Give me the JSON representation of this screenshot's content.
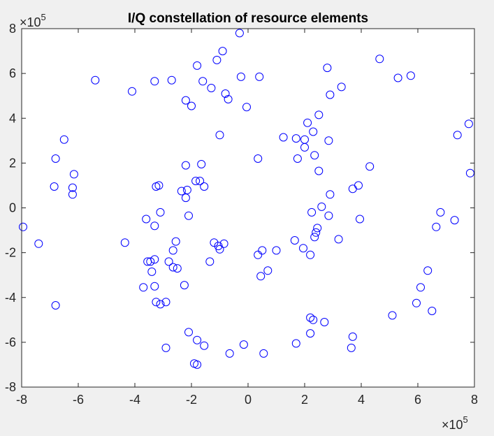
{
  "chart_data": {
    "type": "scatter",
    "title": "I/Q constellation of resource elements",
    "xlabel": "",
    "ylabel": "",
    "xlim": [
      -8,
      8
    ],
    "ylim": [
      -8,
      8
    ],
    "x_ticks": [
      "-8",
      "-6",
      "-4",
      "-2",
      "0",
      "2",
      "4",
      "6",
      "8"
    ],
    "y_ticks": [
      "8",
      "6",
      "4",
      "2",
      "0",
      "-2",
      "-4",
      "-6",
      "-8"
    ],
    "x_exponent": {
      "base": "×10",
      "power": "5"
    },
    "y_exponent": {
      "base": "×10",
      "power": "5"
    },
    "grid": false,
    "marker": "o",
    "marker_color": "#0000ff",
    "points": [
      [
        -0.3,
        7.8
      ],
      [
        -0.9,
        7.0
      ],
      [
        -1.1,
        6.6
      ],
      [
        -1.8,
        6.35
      ],
      [
        -2.7,
        5.7
      ],
      [
        -3.3,
        5.65
      ],
      [
        -5.4,
        5.7
      ],
      [
        -1.6,
        5.65
      ],
      [
        -1.3,
        5.35
      ],
      [
        -0.8,
        5.1
      ],
      [
        -0.7,
        4.85
      ],
      [
        -2.2,
        4.8
      ],
      [
        -2.0,
        4.55
      ],
      [
        -4.1,
        5.2
      ],
      [
        -0.25,
        5.85
      ],
      [
        0.4,
        5.85
      ],
      [
        -0.05,
        4.5
      ],
      [
        -1.0,
        3.25
      ],
      [
        2.8,
        6.25
      ],
      [
        2.9,
        5.05
      ],
      [
        3.3,
        5.4
      ],
      [
        4.65,
        6.65
      ],
      [
        5.3,
        5.8
      ],
      [
        5.75,
        5.9
      ],
      [
        2.5,
        4.15
      ],
      [
        2.1,
        3.8
      ],
      [
        2.3,
        3.4
      ],
      [
        1.25,
        3.15
      ],
      [
        1.7,
        3.1
      ],
      [
        2.0,
        3.05
      ],
      [
        2.85,
        3.0
      ],
      [
        2.0,
        2.7
      ],
      [
        0.35,
        2.2
      ],
      [
        1.75,
        2.2
      ],
      [
        2.35,
        2.35
      ],
      [
        2.5,
        1.65
      ],
      [
        4.3,
        1.85
      ],
      [
        -6.5,
        3.05
      ],
      [
        -6.8,
        2.2
      ],
      [
        -6.15,
        1.5
      ],
      [
        -6.2,
        0.9
      ],
      [
        -6.85,
        0.95
      ],
      [
        -6.2,
        0.6
      ],
      [
        -7.95,
        -0.85
      ],
      [
        -7.4,
        -1.6
      ],
      [
        -6.8,
        -4.35
      ],
      [
        -4.35,
        -1.55
      ],
      [
        -2.2,
        1.9
      ],
      [
        -1.65,
        1.95
      ],
      [
        -1.85,
        1.2
      ],
      [
        -1.7,
        1.2
      ],
      [
        -1.55,
        0.95
      ],
      [
        -2.35,
        0.75
      ],
      [
        -2.15,
        0.8
      ],
      [
        -2.2,
        0.45
      ],
      [
        -3.25,
        0.95
      ],
      [
        -3.15,
        1.0
      ],
      [
        -3.1,
        -0.2
      ],
      [
        -3.6,
        -0.5
      ],
      [
        -3.3,
        -0.8
      ],
      [
        -2.1,
        -0.35
      ],
      [
        -1.2,
        -1.55
      ],
      [
        -1.05,
        -1.7
      ],
      [
        -0.85,
        -1.6
      ],
      [
        -1.0,
        -1.85
      ],
      [
        -2.55,
        -1.5
      ],
      [
        -2.65,
        -1.9
      ],
      [
        -1.35,
        -2.4
      ],
      [
        -3.55,
        -2.4
      ],
      [
        -3.45,
        -2.4
      ],
      [
        -3.3,
        -2.3
      ],
      [
        -2.8,
        -2.4
      ],
      [
        -2.65,
        -2.65
      ],
      [
        -2.5,
        -2.7
      ],
      [
        -3.4,
        -2.85
      ],
      [
        -3.7,
        -3.55
      ],
      [
        -3.3,
        -3.5
      ],
      [
        -2.25,
        -3.45
      ],
      [
        -3.25,
        -4.2
      ],
      [
        -3.1,
        -4.3
      ],
      [
        -2.9,
        -4.2
      ],
      [
        3.7,
        0.85
      ],
      [
        3.9,
        1.0
      ],
      [
        2.9,
        0.6
      ],
      [
        2.6,
        0.05
      ],
      [
        2.25,
        -0.2
      ],
      [
        2.85,
        -0.35
      ],
      [
        3.95,
        -0.5
      ],
      [
        2.45,
        -0.9
      ],
      [
        2.4,
        -1.1
      ],
      [
        2.35,
        -1.3
      ],
      [
        1.65,
        -1.45
      ],
      [
        1.95,
        -1.8
      ],
      [
        3.2,
        -1.4
      ],
      [
        1.0,
        -1.9
      ],
      [
        0.5,
        -1.9
      ],
      [
        0.35,
        -2.1
      ],
      [
        2.2,
        -2.1
      ],
      [
        0.7,
        -2.8
      ],
      [
        0.45,
        -3.05
      ],
      [
        6.8,
        -0.2
      ],
      [
        7.3,
        -0.55
      ],
      [
        6.65,
        -0.85
      ],
      [
        6.35,
        -2.8
      ],
      [
        6.1,
        -3.55
      ],
      [
        5.95,
        -4.25
      ],
      [
        6.5,
        -4.6
      ],
      [
        5.1,
        -4.8
      ],
      [
        7.4,
        3.25
      ],
      [
        7.8,
        3.75
      ],
      [
        7.85,
        1.55
      ],
      [
        2.2,
        -4.9
      ],
      [
        2.3,
        -5.0
      ],
      [
        2.7,
        -5.1
      ],
      [
        2.2,
        -5.6
      ],
      [
        1.7,
        -6.05
      ],
      [
        3.7,
        -5.75
      ],
      [
        3.65,
        -6.25
      ],
      [
        -2.1,
        -5.55
      ],
      [
        -1.8,
        -5.9
      ],
      [
        -1.55,
        -6.15
      ],
      [
        -2.9,
        -6.25
      ],
      [
        -0.15,
        -6.1
      ],
      [
        -0.65,
        -6.5
      ],
      [
        0.55,
        -6.5
      ],
      [
        -1.9,
        -6.95
      ],
      [
        -1.8,
        -7.0
      ]
    ]
  }
}
